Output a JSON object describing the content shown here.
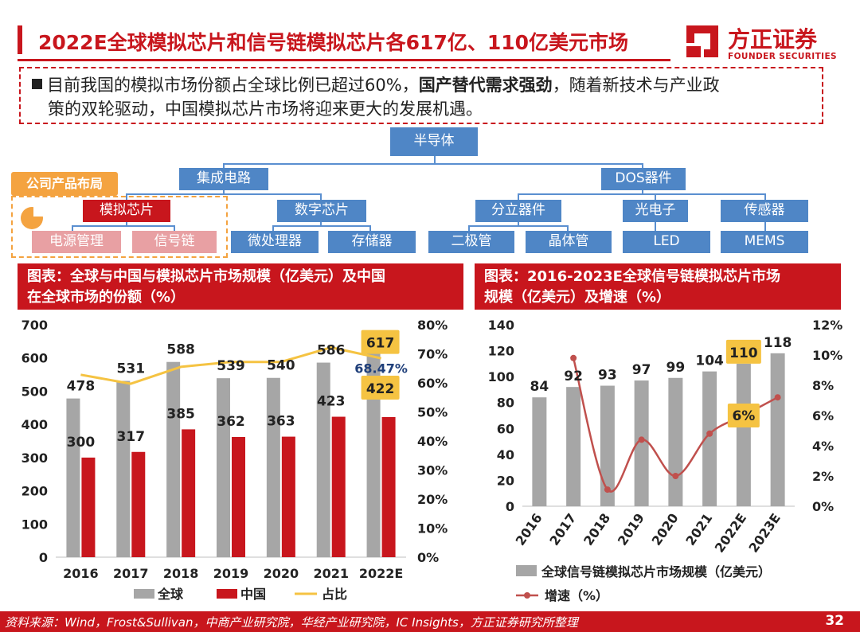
{
  "header": {
    "title": "2022E全球模拟芯片和信号链模拟芯片各617亿、110亿美元市场",
    "logo_name": "方正证券",
    "logo_sub": "FOUNDER SECURITIES"
  },
  "summary": {
    "part1": "目前我国的模拟市场份额占全球比例已超过60%，",
    "bold": "国产替代需求强劲",
    "part2": "，随着新技术与产业政",
    "line2": "策的双轮驱动，中国模拟芯片市场将迎来更大的发展机遇。"
  },
  "tree": {
    "root": "半导体",
    "ic": "集成电路",
    "dos": "DOS器件",
    "analog": "模拟芯片",
    "digital": "数字芯片",
    "discrete": "分立器件",
    "opto": "光电子",
    "sensor": "传感器",
    "power": "电源管理",
    "signal": "信号链",
    "mpu": "微处理器",
    "memory": "存储器",
    "diode": "二极管",
    "transistor": "晶体管",
    "led": "LED",
    "mems": "MEMS",
    "company_tag": "公司产品布局"
  },
  "colors": {
    "brand": "#c8161d",
    "blue": "#4f86c6",
    "gray": "#a6a6a6",
    "gold": "#f5c342",
    "line_red": "#c0504d"
  },
  "chart_left_head": {
    "line1": "图表：全球与中国与模拟芯片市场规模（亿美元）及中国",
    "line2": "在全球市场的份额（%）"
  },
  "chart_right_head": {
    "line1": "图表：2016-2023E全球信号链模拟芯片市场",
    "line2": "规模（亿美元）及增速（%）"
  },
  "chart_data": [
    {
      "type": "bar",
      "title": "全球与中国与模拟芯片市场规模（亿美元）及中国在全球市场的份额（%）",
      "categories": [
        "2016",
        "2017",
        "2018",
        "2019",
        "2020",
        "2021",
        "2022E"
      ],
      "series": [
        {
          "name": "全球",
          "kind": "bar",
          "values": [
            478,
            531,
            588,
            539,
            540,
            586,
            617
          ]
        },
        {
          "name": "中国",
          "kind": "bar",
          "values": [
            300,
            317,
            385,
            362,
            363,
            423,
            422
          ]
        },
        {
          "name": "占比",
          "kind": "line",
          "axis": "right",
          "values": [
            62.8,
            59.7,
            65.5,
            67.2,
            67.2,
            72.2,
            68.47
          ]
        }
      ],
      "ylim": [
        0,
        700
      ],
      "yticks": [
        "0",
        "100",
        "200",
        "300",
        "400",
        "500",
        "600",
        "700"
      ],
      "y2lim": [
        0,
        80
      ],
      "y2ticks": [
        "0%",
        "10%",
        "20%",
        "30%",
        "40%",
        "50%",
        "60%",
        "70%",
        "80%"
      ],
      "annotation": "68.47%",
      "legend": [
        "全球",
        "中国",
        "占比"
      ]
    },
    {
      "type": "bar",
      "title": "2016-2023E全球信号链模拟芯片市场规模（亿美元）及增速（%）",
      "categories": [
        "2016",
        "2017",
        "2018",
        "2019",
        "2020",
        "2021",
        "2022E",
        "2023E"
      ],
      "series": [
        {
          "name": "全球信号链模拟芯片市场规模（亿美元）",
          "kind": "bar",
          "values": [
            84,
            92,
            93,
            97,
            99,
            104,
            110,
            118
          ]
        },
        {
          "name": "增速（%）",
          "kind": "line",
          "axis": "right",
          "values": [
            null,
            9.8,
            1.1,
            4.4,
            2.0,
            4.8,
            6.0,
            7.2
          ]
        }
      ],
      "ylim": [
        0,
        140
      ],
      "yticks": [
        "0",
        "20",
        "40",
        "60",
        "80",
        "100",
        "120",
        "140"
      ],
      "y2lim": [
        0,
        12
      ],
      "y2ticks": [
        "0%",
        "2%",
        "4%",
        "6%",
        "8%",
        "10%",
        "12%"
      ],
      "annotation": "6%",
      "legend": [
        "全球信号链模拟芯片市场规模（亿美元）",
        "增速（%）"
      ]
    }
  ],
  "footer": {
    "source": "资料来源：Wind，Frost&Sullivan，中商产业研究院，华经产业研究院，IC Insights，方正证券研究所整理",
    "page": "32"
  }
}
